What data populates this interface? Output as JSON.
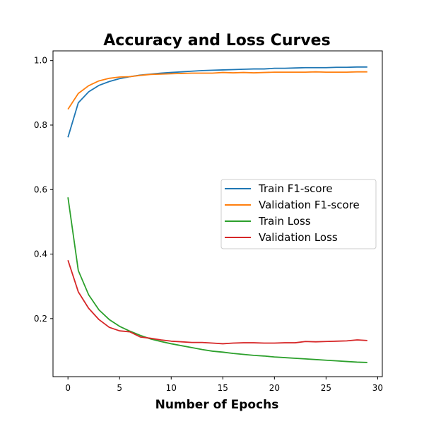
{
  "chart_data": {
    "type": "line",
    "title": "Accuracy and Loss Curves",
    "xlabel": "Number of Epochs",
    "ylabel": "",
    "xlim": [
      -1.45,
      30.45
    ],
    "ylim": [
      0.02,
      1.03
    ],
    "xticks": [
      0,
      5,
      10,
      15,
      20,
      25,
      30
    ],
    "yticks": [
      0.2,
      0.4,
      0.6,
      0.8,
      1.0
    ],
    "xtick_labels": [
      "0",
      "5",
      "10",
      "15",
      "20",
      "25",
      "30"
    ],
    "ytick_labels": [
      "0.2",
      "0.4",
      "0.6",
      "0.8",
      "1.0"
    ],
    "grid": false,
    "legend_position": "center-right",
    "x": [
      0,
      1,
      2,
      3,
      4,
      5,
      6,
      7,
      8,
      9,
      10,
      11,
      12,
      13,
      14,
      15,
      16,
      17,
      18,
      19,
      20,
      21,
      22,
      23,
      24,
      25,
      26,
      27,
      28,
      29
    ],
    "series": [
      {
        "name": "Train F1-score",
        "color": "#1f77b4",
        "values": [
          0.762,
          0.869,
          0.903,
          0.923,
          0.935,
          0.944,
          0.95,
          0.955,
          0.958,
          0.961,
          0.963,
          0.965,
          0.967,
          0.969,
          0.97,
          0.971,
          0.972,
          0.973,
          0.974,
          0.974,
          0.976,
          0.976,
          0.977,
          0.978,
          0.978,
          0.978,
          0.979,
          0.979,
          0.98,
          0.98
        ]
      },
      {
        "name": "Validation F1-score",
        "color": "#ff7f0e",
        "values": [
          0.849,
          0.898,
          0.922,
          0.937,
          0.945,
          0.949,
          0.95,
          0.954,
          0.957,
          0.958,
          0.959,
          0.96,
          0.961,
          0.961,
          0.961,
          0.963,
          0.962,
          0.963,
          0.962,
          0.963,
          0.964,
          0.964,
          0.964,
          0.964,
          0.965,
          0.964,
          0.964,
          0.964,
          0.965,
          0.965
        ]
      },
      {
        "name": "Train Loss",
        "color": "#2ca02c",
        "values": [
          0.576,
          0.349,
          0.274,
          0.227,
          0.197,
          0.176,
          0.161,
          0.148,
          0.137,
          0.129,
          0.122,
          0.116,
          0.11,
          0.104,
          0.099,
          0.096,
          0.092,
          0.089,
          0.086,
          0.084,
          0.081,
          0.079,
          0.077,
          0.075,
          0.073,
          0.071,
          0.069,
          0.067,
          0.065,
          0.064
        ]
      },
      {
        "name": "Validation Loss",
        "color": "#d62728",
        "values": [
          0.381,
          0.283,
          0.232,
          0.197,
          0.173,
          0.162,
          0.159,
          0.143,
          0.139,
          0.134,
          0.13,
          0.128,
          0.126,
          0.126,
          0.124,
          0.122,
          0.124,
          0.125,
          0.125,
          0.124,
          0.124,
          0.125,
          0.125,
          0.129,
          0.128,
          0.129,
          0.13,
          0.131,
          0.134,
          0.132
        ]
      }
    ]
  }
}
